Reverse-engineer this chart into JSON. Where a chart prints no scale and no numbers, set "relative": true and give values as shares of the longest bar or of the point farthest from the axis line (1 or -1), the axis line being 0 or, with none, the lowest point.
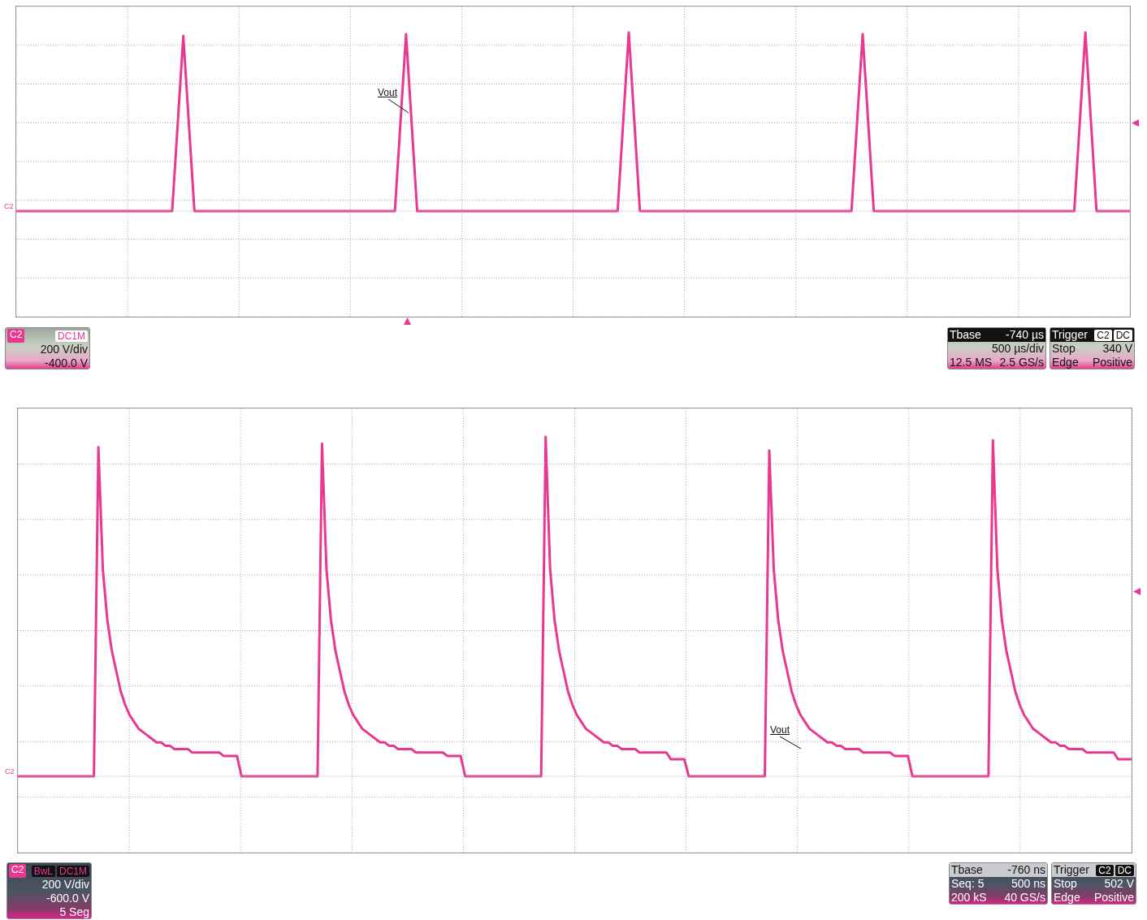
{
  "chart_data": [
    {
      "type": "line",
      "relative": true,
      "grid": true,
      "categories": [
        null,
        null,
        null,
        null,
        null,
        null,
        null,
        null,
        null,
        null,
        null,
        null,
        null,
        null,
        null,
        null,
        null,
        null,
        null,
        null,
        null,
        null,
        null,
        null,
        null,
        null,
        null,
        null,
        null,
        null,
        null,
        null,
        null,
        null,
        null,
        null,
        null,
        null,
        null,
        null,
        null,
        null,
        null,
        null,
        null,
        null,
        null,
        null,
        null,
        null,
        null,
        null,
        null,
        null,
        null,
        null,
        null,
        null,
        null,
        null,
        null,
        null,
        null,
        null,
        null,
        null,
        null,
        null,
        null,
        null,
        null,
        null,
        null,
        null,
        null,
        null,
        null,
        null,
        null,
        null,
        null,
        null,
        null,
        null,
        null,
        null,
        null,
        null,
        null,
        null,
        null,
        null,
        null,
        null,
        null,
        null,
        null,
        null,
        null,
        null,
        null
      ],
      "series": [
        {
          "color": "#e8388f",
          "values": [
            0,
            0,
            0,
            0,
            0,
            0,
            0,
            0,
            0,
            0,
            0,
            0,
            0,
            0,
            0,
            0.98,
            0,
            0,
            0,
            0,
            0,
            0,
            0,
            0,
            0,
            0,
            0,
            0,
            0,
            0,
            0,
            0,
            0,
            0,
            0,
            0.99,
            0,
            0,
            0,
            0,
            0,
            0,
            0,
            0,
            0,
            0,
            0,
            0,
            0,
            0,
            0,
            0,
            0,
            0,
            0,
            1,
            0,
            0,
            0,
            0,
            0,
            0,
            0,
            0,
            0,
            0,
            0,
            0,
            0,
            0,
            0,
            0,
            0,
            0,
            0,
            0,
            0.99,
            0,
            0,
            0,
            0,
            0,
            0,
            0,
            0,
            0,
            0,
            0,
            0,
            0,
            0,
            0,
            0,
            0,
            0,
            0,
            1,
            0,
            0,
            0,
            0
          ]
        }
      ],
      "annotations": [
        "Vout",
        "C2",
        "C2",
        "DC1M",
        "200 V/div",
        "-400.0 V",
        "Tbase",
        "-740 µs",
        "500 µs/div",
        "12.5 MS",
        "2.5 GS/s",
        "Trigger",
        "C2",
        "DC",
        "Stop",
        "340 V",
        "Edge",
        "Positive"
      ]
    },
    {
      "type": "line",
      "relative": true,
      "grid": true,
      "categories": [
        null,
        null,
        null,
        null,
        null,
        null,
        null,
        null,
        null,
        null,
        null,
        null,
        null,
        null,
        null,
        null,
        null,
        null,
        null,
        null,
        null,
        null,
        null,
        null,
        null,
        null,
        null,
        null,
        null,
        null,
        null,
        null,
        null,
        null,
        null,
        null,
        null,
        null,
        null,
        null,
        null,
        null,
        null,
        null,
        null,
        null,
        null,
        null,
        null,
        null,
        null,
        null,
        null,
        null,
        null,
        null,
        null,
        null,
        null,
        null,
        null,
        null,
        null,
        null,
        null,
        null,
        null,
        null,
        null,
        null,
        null,
        null,
        null,
        null,
        null,
        null,
        null,
        null,
        null,
        null,
        null,
        null,
        null,
        null,
        null,
        null,
        null,
        null,
        null,
        null,
        null,
        null,
        null,
        null,
        null,
        null,
        null,
        null,
        null,
        null,
        null,
        null,
        null,
        null,
        null,
        null,
        null,
        null,
        null,
        null,
        null,
        null,
        null,
        null,
        null,
        null,
        null,
        null,
        null,
        null,
        null,
        null,
        null,
        null,
        null,
        null,
        null,
        null,
        null,
        null,
        null,
        null,
        null,
        null,
        null,
        null,
        null,
        null,
        null,
        null,
        null,
        null,
        null,
        null,
        null,
        null,
        null,
        null,
        null,
        null,
        null,
        null,
        null,
        null,
        null,
        null,
        null,
        null,
        null,
        null,
        null,
        null,
        null,
        null,
        null,
        null,
        null,
        null,
        null,
        null,
        null,
        null,
        null,
        null,
        null,
        null,
        null,
        null,
        null,
        null,
        null,
        null,
        null,
        null,
        null,
        null,
        null,
        null,
        null,
        null,
        null,
        null,
        null,
        null,
        null,
        null,
        null,
        null,
        null,
        null,
        null,
        null,
        null,
        null,
        null,
        null,
        null,
        null,
        null,
        null,
        null,
        null,
        null,
        null,
        null,
        null,
        null,
        null,
        null,
        null,
        null,
        null,
        null,
        null,
        null,
        null,
        null,
        null,
        null,
        null,
        null,
        null,
        null,
        null,
        null,
        null,
        null,
        null,
        null,
        null,
        null,
        null,
        null,
        null,
        null,
        null,
        null,
        null,
        null,
        null
      ],
      "series": [
        {
          "color": "#e8388f",
          "values": [
            0,
            0,
            0,
            0,
            0,
            0,
            0,
            0,
            0,
            0,
            0,
            0,
            0,
            0,
            0,
            0,
            0,
            0,
            0.97,
            0.61,
            0.46,
            0.37,
            0.31,
            0.25,
            0.21,
            0.18,
            0.16,
            0.14,
            0.13,
            0.12,
            0.11,
            0.1,
            0.1,
            0.09,
            0.09,
            0.08,
            0.08,
            0.08,
            0.08,
            0.07,
            0.07,
            0.07,
            0.07,
            0.07,
            0.07,
            0.07,
            0.06,
            0.06,
            0.06,
            0.06,
            0,
            0,
            0,
            0,
            0,
            0,
            0,
            0,
            0,
            0,
            0,
            0,
            0,
            0,
            0,
            0,
            0,
            0,
            0.98,
            0.61,
            0.46,
            0.37,
            0.31,
            0.25,
            0.21,
            0.18,
            0.16,
            0.14,
            0.13,
            0.12,
            0.11,
            0.1,
            0.1,
            0.09,
            0.09,
            0.08,
            0.08,
            0.08,
            0.08,
            0.07,
            0.07,
            0.07,
            0.07,
            0.07,
            0.07,
            0.07,
            0.06,
            0.06,
            0.06,
            0.06,
            0,
            0,
            0,
            0,
            0,
            0,
            0,
            0,
            0,
            0,
            0,
            0,
            0,
            0,
            0,
            0,
            0,
            0,
            1,
            0.61,
            0.46,
            0.37,
            0.31,
            0.25,
            0.21,
            0.18,
            0.16,
            0.14,
            0.13,
            0.12,
            0.11,
            0.1,
            0.1,
            0.09,
            0.09,
            0.08,
            0.08,
            0.08,
            0.08,
            0.07,
            0.07,
            0.07,
            0.07,
            0.07,
            0.07,
            0.07,
            0.05,
            0.05,
            0.05,
            0.05,
            0,
            0,
            0,
            0,
            0,
            0,
            0,
            0,
            0,
            0,
            0,
            0,
            0,
            0,
            0,
            0,
            0,
            0,
            0.96,
            0.61,
            0.46,
            0.37,
            0.31,
            0.25,
            0.21,
            0.18,
            0.16,
            0.14,
            0.13,
            0.12,
            0.11,
            0.1,
            0.1,
            0.09,
            0.09,
            0.08,
            0.08,
            0.08,
            0.08,
            0.07,
            0.07,
            0.07,
            0.07,
            0.07,
            0.07,
            0.07,
            0.06,
            0.06,
            0.06,
            0.06,
            0,
            0,
            0,
            0,
            0,
            0,
            0,
            0,
            0,
            0,
            0,
            0,
            0,
            0,
            0,
            0,
            0,
            0,
            0.99,
            0.61,
            0.46,
            0.37,
            0.31,
            0.25,
            0.21,
            0.18,
            0.16,
            0.14,
            0.13,
            0.12,
            0.11,
            0.1,
            0.1,
            0.09,
            0.09,
            0.08,
            0.08,
            0.08,
            0.08,
            0.07,
            0.07,
            0.07,
            0.07,
            0.07,
            0.07,
            0.07,
            0.05,
            0.05,
            0.05,
            0.05
          ]
        }
      ],
      "annotations": [
        "Vout",
        "C2",
        "C2",
        "BwL",
        "DC1M",
        "200 V/div",
        "-600.0 V",
        "5 Seg",
        "Tbase",
        "-760 ns",
        "Seq: 5",
        "500 ns",
        "200 kS",
        "40 GS/s",
        "Trigger",
        "C2",
        "DC",
        "Stop",
        "502 V",
        "Edge",
        "Positive"
      ]
    }
  ]
}
